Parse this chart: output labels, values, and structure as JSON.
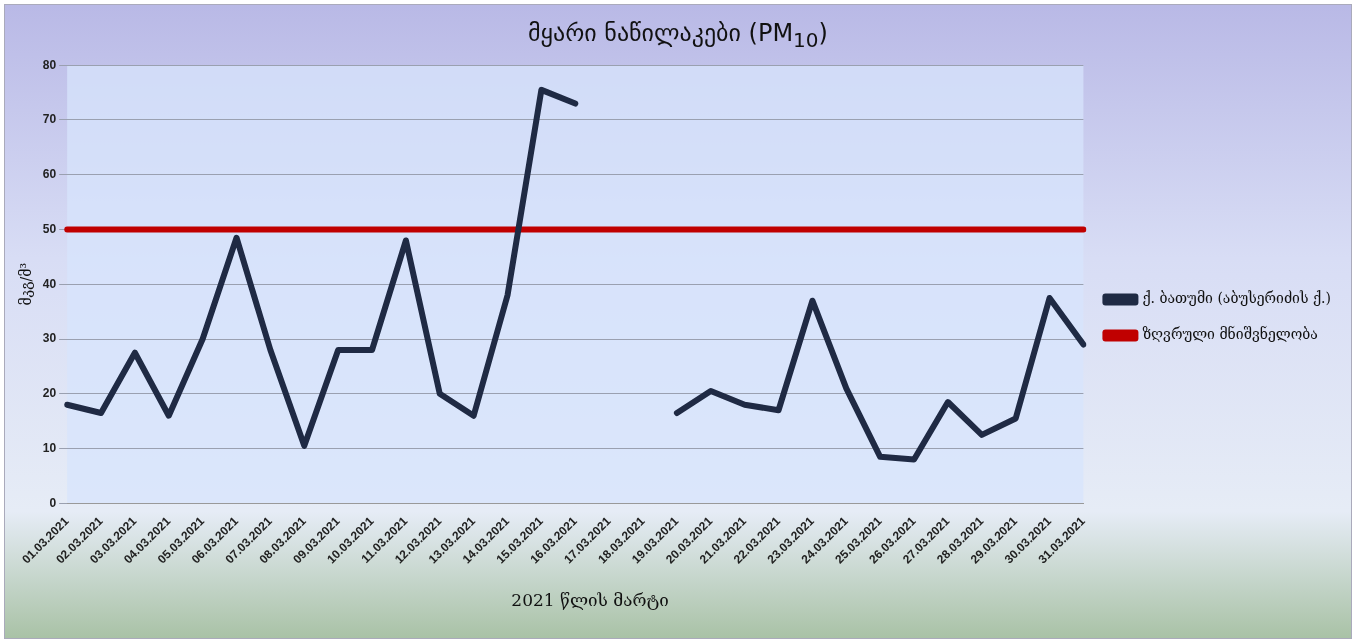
{
  "chart_data": {
    "type": "line",
    "title": "მყარი ნაწილაკები (PM$_{10}$)",
    "xlabel": "2021 წლის მარტი",
    "ylabel": "მკგ/მ³",
    "categories": [
      "01.03.2021",
      "02.03.2021",
      "03.03.2021",
      "04.03.2021",
      "05.03.2021",
      "06.03.2021",
      "07.03.2021",
      "08.03.2021",
      "09.03.2021",
      "10.03.2021",
      "11.03.2021",
      "12.03.2021",
      "13.03.2021",
      "14.03.2021",
      "15.03.2021",
      "16.03.2021",
      "17.03.2021",
      "18.03.2021",
      "19.03.2021",
      "20.03.2021",
      "21.03.2021",
      "22.03.2021",
      "23.03.2021",
      "24.03.2021",
      "25.03.2021",
      "26.03.2021",
      "27.03.2021",
      "28.03.2021",
      "29.03.2021",
      "30.03.2021",
      "31.03.2021"
    ],
    "series": [
      {
        "name": "ქ. ბათუმი (აბუსერიძის ქ.)",
        "color": "#1f2a44",
        "values": [
          18,
          16.5,
          27.5,
          16,
          30,
          48.5,
          28,
          10.5,
          28,
          28,
          48,
          20,
          16,
          38,
          75.5,
          73,
          null,
          null,
          16.5,
          20.5,
          18,
          17,
          37,
          21,
          8.5,
          8,
          18.5,
          12.5,
          15.5,
          37.5,
          29
        ]
      },
      {
        "name": "ზღვრული მნიშვნელობა",
        "color": "#c00000",
        "values": [
          50,
          50,
          50,
          50,
          50,
          50,
          50,
          50,
          50,
          50,
          50,
          50,
          50,
          50,
          50,
          50,
          50,
          50,
          50,
          50,
          50,
          50,
          50,
          50,
          50,
          50,
          50,
          50,
          50,
          50,
          50
        ]
      }
    ],
    "ylim": [
      0,
      80
    ],
    "yticks": [
      0,
      10,
      20,
      30,
      40,
      50,
      60,
      70,
      80
    ],
    "grid": "y",
    "legend": "right",
    "marker": "none",
    "line_style": "solid"
  }
}
